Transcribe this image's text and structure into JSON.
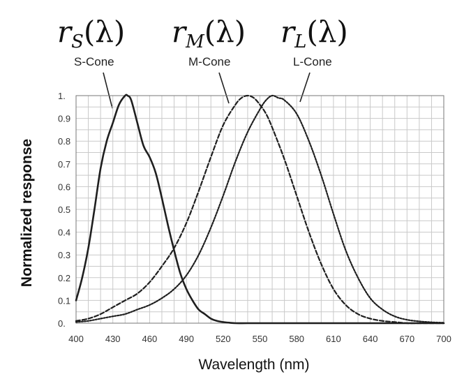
{
  "chart_data": {
    "type": "line",
    "xlabel": "Wavelength (nm)",
    "ylabel": "Normalized response",
    "xlim": [
      400,
      700
    ],
    "ylim": [
      0,
      1
    ],
    "x_ticks": [
      "400",
      "430",
      "460",
      "490",
      "520",
      "550",
      "580",
      "610",
      "640",
      "670",
      "700"
    ],
    "y_ticks": [
      "0.",
      "0.1",
      "0.2",
      "0.3",
      "0.4",
      "0.5",
      "0.6",
      "0.7",
      "0.8",
      "0.9",
      "1."
    ],
    "grid": true,
    "series": [
      {
        "name": "S-Cone",
        "math_symbol": "r",
        "math_subscript": "S",
        "math_arg": "(λ)",
        "style": "solid",
        "x": [
          400,
          405,
          410,
          415,
          420,
          425,
          430,
          435,
          440,
          442,
          445,
          450,
          455,
          460,
          465,
          470,
          475,
          480,
          485,
          490,
          495,
          500,
          505,
          510,
          515,
          520,
          525,
          530,
          540,
          560,
          600,
          700
        ],
        "y": [
          0.1,
          0.2,
          0.33,
          0.5,
          0.68,
          0.8,
          0.88,
          0.96,
          1.0,
          1.0,
          0.98,
          0.88,
          0.78,
          0.73,
          0.66,
          0.55,
          0.43,
          0.32,
          0.22,
          0.15,
          0.1,
          0.06,
          0.04,
          0.02,
          0.01,
          0.005,
          0.002,
          0.0,
          0.0,
          0.0,
          0.0,
          0.0
        ]
      },
      {
        "name": "M-Cone",
        "math_symbol": "r",
        "math_subscript": "M",
        "math_arg": "(λ)",
        "style": "dashed",
        "x": [
          400,
          410,
          420,
          430,
          440,
          450,
          460,
          470,
          480,
          490,
          500,
          510,
          520,
          530,
          535,
          540,
          545,
          550,
          555,
          560,
          570,
          580,
          590,
          600,
          610,
          620,
          630,
          640,
          650,
          660,
          670,
          680,
          700
        ],
        "y": [
          0.01,
          0.02,
          0.04,
          0.07,
          0.1,
          0.13,
          0.18,
          0.25,
          0.33,
          0.44,
          0.58,
          0.73,
          0.87,
          0.96,
          0.99,
          1.0,
          0.99,
          0.96,
          0.92,
          0.86,
          0.72,
          0.56,
          0.4,
          0.26,
          0.15,
          0.08,
          0.04,
          0.02,
          0.01,
          0.005,
          0.0,
          0.0,
          0.0
        ]
      },
      {
        "name": "L-Cone",
        "math_symbol": "r",
        "math_subscript": "L",
        "math_arg": "(λ)",
        "style": "dotted",
        "x": [
          400,
          410,
          420,
          430,
          440,
          450,
          460,
          470,
          480,
          490,
          500,
          510,
          520,
          530,
          540,
          550,
          555,
          560,
          565,
          570,
          580,
          590,
          600,
          610,
          620,
          630,
          640,
          650,
          660,
          670,
          680,
          690,
          700
        ],
        "y": [
          0.005,
          0.01,
          0.02,
          0.03,
          0.04,
          0.06,
          0.08,
          0.11,
          0.15,
          0.21,
          0.3,
          0.42,
          0.56,
          0.71,
          0.84,
          0.94,
          0.98,
          1.0,
          0.99,
          0.98,
          0.92,
          0.8,
          0.65,
          0.48,
          0.32,
          0.2,
          0.11,
          0.06,
          0.03,
          0.015,
          0.008,
          0.004,
          0.002
        ]
      }
    ]
  }
}
